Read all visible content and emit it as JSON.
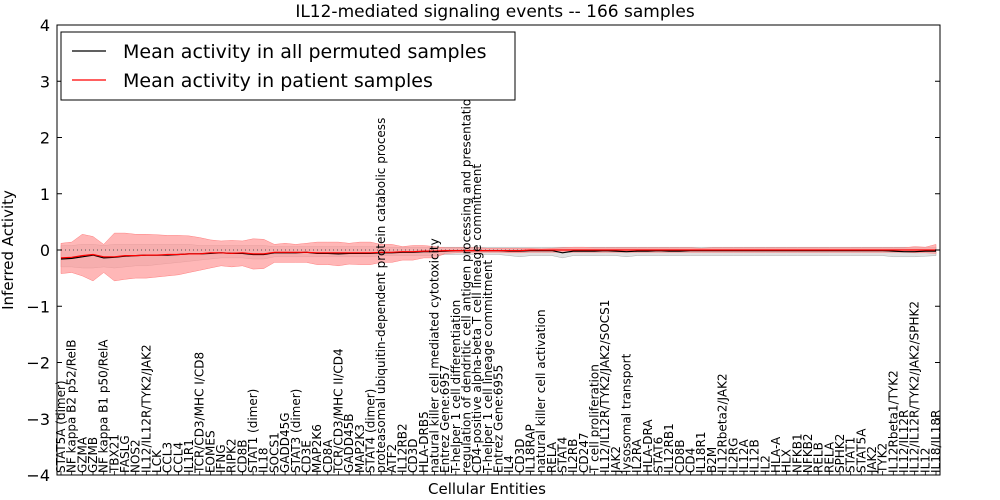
{
  "chart_data": {
    "type": "line",
    "title": "IL12-mediated signaling events -- 166 samples",
    "xlabel": "Cellular Entities",
    "ylabel": "Inferred Activity",
    "ylim": [
      -4,
      4
    ],
    "yticks": [
      "4",
      "3",
      "2",
      "1",
      "0",
      "−1",
      "−2",
      "−3",
      "−4"
    ],
    "legend": {
      "position": "top-left",
      "entries": [
        {
          "label": "Mean activity in all permuted samples",
          "color": "#000000"
        },
        {
          "label": "Mean activity in patient samples",
          "color": "#ff0000"
        }
      ]
    },
    "colors": {
      "patient_band": "#ff9999",
      "permuted_band": "#c8c8c8",
      "patient_line": "#ff0000",
      "permuted_line": "#000000"
    },
    "categories": [
      "STAT5A (dimer)",
      "NF kappa B2 p52/RelB",
      "GZMA",
      "GZMB",
      "NF kappa B1 p50/RelA",
      "TBX21",
      "FASLG",
      "NOS2",
      "IL12/IL12R/TYK2/JAK2",
      "LCK",
      "CCL3",
      "CCL4",
      "IL1R1",
      "TCR/CD3/MHC I/CD8",
      "EOMES",
      "IFNG",
      "RIPK2",
      "CD8B",
      "STAT1 (dimer)",
      "IL18",
      "SOCS1",
      "GADD45G",
      "STAT3 (dimer)",
      "CD3E",
      "MAP2K6",
      "CD8A",
      "TCR/CD3/MHC II/CD4",
      "GADD45B",
      "MAP2K3",
      "STAT4 (dimer)",
      "proteasomal ubiquitin-dependent protein catabolic process",
      "ATF2",
      "IL12RB2",
      "CD3D",
      "HLA-DRB5",
      "natural killer cell mediated cytotoxicity",
      "Entrez Gene:6957",
      "T-helper 1 cell differentiation",
      "regulation of dendritic cell antigen processing and presentation",
      "CD4-positive alpha-beta T cell lineage commitment",
      "T-helper 1 cell lineage commitment",
      "Entrez Gene:6955",
      "IL4",
      "CD3D",
      "IL18RAP",
      "natural killer cell activation",
      "RELA",
      "STAT4",
      "IL2RB",
      "CD247",
      "T cell proliferation",
      "IL12/IL12R/TYK2/JAK2/SOCS1",
      "JAK2",
      "lysosomal transport",
      "IL2RA",
      "HLA-DRA",
      "STAT6",
      "IL12RB1",
      "CD8B",
      "CD4",
      "IL18R1",
      "B2M",
      "IL12Rbeta2/JAK2",
      "IL2RG",
      "IL12A",
      "IL12B",
      "IL2",
      "HLA-A",
      "HLX",
      "NFKB1",
      "NFKB2",
      "RELB",
      "RELA",
      "SPHK2",
      "STAT1",
      "STAT5A",
      "JAK2",
      "TYK2",
      "IL12Rbeta1/TYK2",
      "IL12/IL12R",
      "IL12/IL12R/TYK2/JAK2/SPHK2",
      "IL12",
      "IL18/IL18R"
    ],
    "series": [
      {
        "name": "Mean activity in patient samples",
        "values": [
          -0.14,
          -0.13,
          -0.1,
          -0.08,
          -0.12,
          -0.12,
          -0.1,
          -0.1,
          -0.09,
          -0.09,
          -0.08,
          -0.08,
          -0.07,
          -0.07,
          -0.05,
          -0.05,
          -0.06,
          -0.05,
          -0.07,
          -0.07,
          -0.04,
          -0.04,
          -0.04,
          -0.04,
          -0.05,
          -0.05,
          -0.05,
          -0.05,
          -0.05,
          -0.05,
          -0.04,
          -0.04,
          -0.03,
          -0.03,
          -0.02,
          -0.02,
          -0.01,
          -0.01,
          -0.01,
          -0.01,
          -0.01,
          -0.01,
          -0.01,
          -0.01,
          0.0,
          0.0,
          0.0,
          0.0,
          0.0,
          0.0,
          0.0,
          0.0,
          0.0,
          0.0,
          0.0,
          0.0,
          0.0,
          0.0,
          0.0,
          0.0,
          0.0,
          0.0,
          0.0,
          0.0,
          0.0,
          0.0,
          0.0,
          0.0,
          0.0,
          0.0,
          0.0,
          0.0,
          0.0,
          0.0,
          0.0,
          0.0,
          0.0,
          0.0,
          0.0,
          0.0,
          0.0,
          0.0,
          0.0
        ]
      },
      {
        "name": "Mean activity in all permuted samples",
        "values": [
          -0.16,
          -0.15,
          -0.12,
          -0.09,
          -0.14,
          -0.13,
          -0.11,
          -0.1,
          -0.09,
          -0.09,
          -0.09,
          -0.08,
          -0.07,
          -0.07,
          -0.06,
          -0.05,
          -0.06,
          -0.06,
          -0.08,
          -0.08,
          -0.05,
          -0.05,
          -0.05,
          -0.04,
          -0.06,
          -0.06,
          -0.07,
          -0.06,
          -0.06,
          -0.06,
          -0.05,
          -0.05,
          -0.04,
          -0.04,
          -0.03,
          -0.03,
          -0.02,
          -0.01,
          -0.01,
          -0.01,
          -0.01,
          -0.01,
          -0.02,
          -0.02,
          -0.01,
          -0.01,
          -0.01,
          -0.05,
          -0.02,
          -0.02,
          -0.02,
          -0.01,
          -0.02,
          -0.03,
          -0.02,
          -0.02,
          -0.01,
          -0.02,
          -0.02,
          -0.01,
          -0.01,
          -0.01,
          -0.01,
          -0.01,
          -0.01,
          -0.01,
          -0.01,
          -0.01,
          -0.01,
          -0.01,
          -0.01,
          -0.01,
          -0.01,
          -0.01,
          -0.01,
          -0.01,
          -0.01,
          -0.01,
          -0.02,
          -0.03,
          -0.03,
          -0.02,
          -0.02
        ]
      }
    ],
    "patient_band": {
      "upper": [
        0.12,
        0.14,
        0.28,
        0.24,
        0.1,
        0.3,
        0.3,
        0.28,
        0.28,
        0.27,
        0.26,
        0.26,
        0.25,
        0.22,
        0.18,
        0.16,
        0.17,
        0.16,
        0.2,
        0.19,
        0.1,
        0.12,
        0.1,
        0.12,
        0.14,
        0.14,
        0.14,
        0.12,
        0.14,
        0.14,
        0.1,
        0.1,
        0.06,
        0.08,
        0.08,
        0.06,
        0.04,
        0.04,
        0.04,
        0.04,
        0.03,
        0.03,
        0.03,
        0.03,
        0.03,
        0.02,
        0.03,
        0.04,
        0.05,
        0.05,
        0.04,
        0.04,
        0.04,
        0.04,
        0.04,
        0.04,
        0.04,
        0.04,
        0.04,
        0.04,
        0.03,
        0.04,
        0.04,
        0.04,
        0.04,
        0.04,
        0.04,
        0.04,
        0.04,
        0.04,
        0.04,
        0.04,
        0.04,
        0.04,
        0.04,
        0.04,
        0.04,
        0.04,
        0.04,
        0.04,
        0.06,
        0.05,
        0.1
      ],
      "lower": [
        -0.42,
        -0.4,
        -0.46,
        -0.55,
        -0.4,
        -0.55,
        -0.52,
        -0.5,
        -0.5,
        -0.48,
        -0.46,
        -0.44,
        -0.4,
        -0.36,
        -0.32,
        -0.28,
        -0.3,
        -0.28,
        -0.34,
        -0.33,
        -0.22,
        -0.22,
        -0.22,
        -0.22,
        -0.26,
        -0.26,
        -0.28,
        -0.25,
        -0.26,
        -0.26,
        -0.22,
        -0.22,
        -0.18,
        -0.18,
        -0.14,
        -0.14,
        -0.06,
        -0.05,
        -0.04,
        -0.04,
        -0.04,
        -0.04,
        -0.05,
        -0.05,
        -0.04,
        -0.04,
        -0.04,
        -0.04,
        -0.04,
        -0.04,
        -0.04,
        -0.04,
        -0.04,
        -0.04,
        -0.04,
        -0.04,
        -0.04,
        -0.04,
        -0.04,
        -0.04,
        -0.04,
        -0.04,
        -0.04,
        -0.04,
        -0.04,
        -0.04,
        -0.04,
        -0.04,
        -0.04,
        -0.04,
        -0.04,
        -0.04,
        -0.04,
        -0.04,
        -0.04,
        -0.04,
        -0.04,
        -0.04,
        -0.04,
        -0.04,
        -0.05,
        -0.05,
        -0.06
      ]
    },
    "permuted_band": {
      "upper": [
        0.08,
        0.08,
        0.1,
        0.1,
        0.08,
        0.1,
        0.1,
        0.1,
        0.1,
        0.1,
        0.1,
        0.1,
        0.1,
        0.08,
        0.08,
        0.08,
        0.08,
        0.08,
        0.08,
        0.08,
        0.06,
        0.06,
        0.06,
        0.06,
        0.06,
        0.06,
        0.06,
        0.06,
        0.06,
        0.06,
        0.05,
        0.05,
        0.05,
        0.05,
        0.05,
        0.05,
        0.05,
        0.05,
        0.05,
        0.05,
        0.05,
        0.05,
        0.05,
        0.05,
        0.05,
        0.05,
        0.05,
        0.05,
        0.05,
        0.05,
        0.05,
        0.05,
        0.05,
        0.05,
        0.05,
        0.05,
        0.05,
        0.05,
        0.05,
        0.05,
        0.05,
        0.05,
        0.05,
        0.05,
        0.05,
        0.05,
        0.05,
        0.05,
        0.05,
        0.05,
        0.05,
        0.05,
        0.05,
        0.05,
        0.05,
        0.05,
        0.05,
        0.05,
        0.05,
        0.05,
        0.05,
        0.05,
        0.05
      ],
      "lower": [
        -0.3,
        -0.3,
        -0.32,
        -0.32,
        -0.3,
        -0.32,
        -0.3,
        -0.28,
        -0.28,
        -0.26,
        -0.24,
        -0.22,
        -0.2,
        -0.18,
        -0.16,
        -0.14,
        -0.14,
        -0.14,
        -0.16,
        -0.16,
        -0.12,
        -0.12,
        -0.12,
        -0.12,
        -0.12,
        -0.12,
        -0.12,
        -0.12,
        -0.12,
        -0.12,
        -0.1,
        -0.1,
        -0.1,
        -0.1,
        -0.1,
        -0.1,
        -0.08,
        -0.08,
        -0.08,
        -0.08,
        -0.08,
        -0.08,
        -0.1,
        -0.12,
        -0.1,
        -0.1,
        -0.1,
        -0.14,
        -0.1,
        -0.1,
        -0.1,
        -0.1,
        -0.1,
        -0.12,
        -0.1,
        -0.1,
        -0.1,
        -0.1,
        -0.1,
        -0.1,
        -0.1,
        -0.1,
        -0.1,
        -0.1,
        -0.1,
        -0.1,
        -0.1,
        -0.1,
        -0.1,
        -0.1,
        -0.1,
        -0.1,
        -0.1,
        -0.1,
        -0.1,
        -0.1,
        -0.1,
        -0.1,
        -0.12,
        -0.12,
        -0.12,
        -0.11,
        -0.1
      ]
    }
  }
}
